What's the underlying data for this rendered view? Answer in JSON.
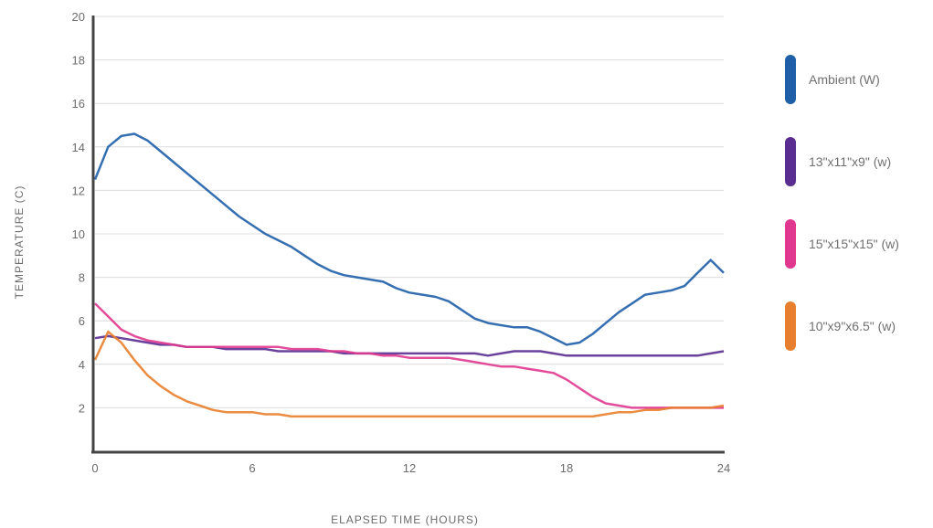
{
  "chart_data": {
    "type": "line",
    "title": "",
    "xlabel": "ELAPSED TIME (HOURS)",
    "ylabel": "TEMPERATURE (C)",
    "xlim": [
      0,
      24
    ],
    "ylim": [
      0,
      20
    ],
    "x_ticks": [
      "0",
      "6",
      "12",
      "18",
      "24"
    ],
    "y_ticks": [
      "2",
      "4",
      "6",
      "8",
      "10",
      "12",
      "14",
      "16",
      "18",
      "20"
    ],
    "grid": "horizontal",
    "legend_position": "right",
    "x": [
      0,
      0.5,
      1,
      1.5,
      2,
      2.5,
      3,
      3.5,
      4,
      4.5,
      5,
      5.5,
      6,
      6.5,
      7,
      7.5,
      8,
      8.5,
      9,
      9.5,
      10,
      10.5,
      11,
      11.5,
      12,
      12.5,
      13,
      13.5,
      14,
      14.5,
      15,
      15.5,
      16,
      16.5,
      17,
      17.5,
      18,
      18.5,
      19,
      19.5,
      20,
      20.5,
      21,
      21.5,
      22,
      22.5,
      23,
      23.5,
      24
    ],
    "series": [
      {
        "name": "Ambient (W)",
        "color": "#1f5fa8",
        "values": [
          12.5,
          14.0,
          14.5,
          14.6,
          14.3,
          13.8,
          13.3,
          12.8,
          12.3,
          11.8,
          11.3,
          10.8,
          10.4,
          10.0,
          9.7,
          9.4,
          9.0,
          8.6,
          8.3,
          8.1,
          8.0,
          7.9,
          7.8,
          7.5,
          7.3,
          7.2,
          7.1,
          6.9,
          6.5,
          6.1,
          5.9,
          5.8,
          5.7,
          5.7,
          5.5,
          5.2,
          4.9,
          5.0,
          5.4,
          5.9,
          6.4,
          6.8,
          7.2,
          7.3,
          7.4,
          7.6,
          8.2,
          8.8,
          8.2
        ]
      },
      {
        "name": "13\"x11\"x9\" (w)",
        "color": "#5a2d91",
        "values": [
          5.2,
          5.3,
          5.2,
          5.1,
          5.0,
          4.9,
          4.9,
          4.8,
          4.8,
          4.8,
          4.7,
          4.7,
          4.7,
          4.7,
          4.6,
          4.6,
          4.6,
          4.6,
          4.6,
          4.5,
          4.5,
          4.5,
          4.5,
          4.5,
          4.5,
          4.5,
          4.5,
          4.5,
          4.5,
          4.5,
          4.4,
          4.5,
          4.6,
          4.6,
          4.6,
          4.5,
          4.4,
          4.4,
          4.4,
          4.4,
          4.4,
          4.4,
          4.4,
          4.4,
          4.4,
          4.4,
          4.4,
          4.5,
          4.6
        ]
      },
      {
        "name": "15\"x15\"x15\" (w)",
        "color": "#e0388f",
        "values": [
          6.8,
          6.2,
          5.6,
          5.3,
          5.1,
          5.0,
          4.9,
          4.8,
          4.8,
          4.8,
          4.8,
          4.8,
          4.8,
          4.8,
          4.8,
          4.7,
          4.7,
          4.7,
          4.6,
          4.6,
          4.5,
          4.5,
          4.4,
          4.4,
          4.3,
          4.3,
          4.3,
          4.3,
          4.2,
          4.1,
          4.0,
          3.9,
          3.9,
          3.8,
          3.7,
          3.6,
          3.3,
          2.9,
          2.5,
          2.2,
          2.1,
          2.0,
          2.0,
          2.0,
          2.0,
          2.0,
          2.0,
          2.0,
          2.0
        ]
      },
      {
        "name": "10\"x9\"x6.5\" (w)",
        "color": "#e87f2e",
        "values": [
          4.2,
          5.5,
          5.0,
          4.2,
          3.5,
          3.0,
          2.6,
          2.3,
          2.1,
          1.9,
          1.8,
          1.8,
          1.8,
          1.7,
          1.7,
          1.6,
          1.6,
          1.6,
          1.6,
          1.6,
          1.6,
          1.6,
          1.6,
          1.6,
          1.6,
          1.6,
          1.6,
          1.6,
          1.6,
          1.6,
          1.6,
          1.6,
          1.6,
          1.6,
          1.6,
          1.6,
          1.6,
          1.6,
          1.6,
          1.7,
          1.8,
          1.8,
          1.9,
          1.9,
          2.0,
          2.0,
          2.0,
          2.0,
          2.1
        ]
      }
    ]
  }
}
